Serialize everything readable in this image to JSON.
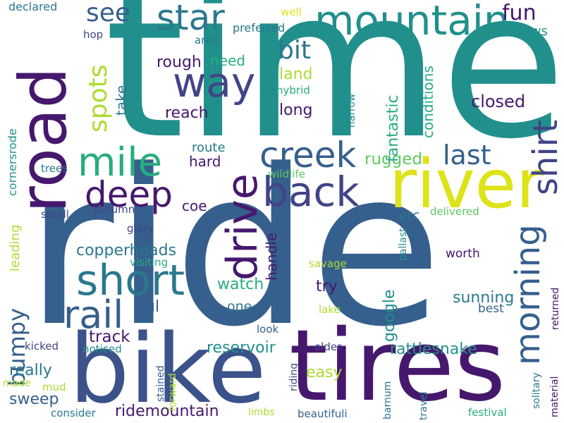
{
  "palette": {
    "dark_purple": "#46186d",
    "indigo": "#414487",
    "blue": "#355f8d",
    "teal": "#21908c",
    "sea_green": "#27ad81",
    "green": "#5ec962",
    "lime": "#addc30",
    "yellow": "#dde318"
  },
  "words": [
    {
      "text": "ride",
      "weight": 1.0,
      "color": "#355f8d"
    },
    {
      "text": "time",
      "weight": 0.95,
      "color": "#21908c"
    },
    {
      "text": "bike",
      "weight": 0.62,
      "color": "#3b528b"
    },
    {
      "text": "tires",
      "weight": 0.56,
      "color": "#46186d"
    },
    {
      "text": "road",
      "weight": 0.52,
      "color": "#46186d"
    },
    {
      "text": "river",
      "weight": 0.42,
      "color": "#dde318"
    },
    {
      "text": "mountain",
      "weight": 0.34,
      "color": "#21908c"
    },
    {
      "text": "drive",
      "weight": 0.33,
      "color": "#46186d"
    },
    {
      "text": "short",
      "weight": 0.32,
      "color": "#2a788e"
    },
    {
      "text": "back",
      "weight": 0.3,
      "color": "#414487"
    },
    {
      "text": "creek",
      "weight": 0.28,
      "color": "#355f8d"
    },
    {
      "text": "star",
      "weight": 0.28,
      "color": "#2a788e"
    },
    {
      "text": "way",
      "weight": 0.27,
      "color": "#414487"
    },
    {
      "text": "mile",
      "weight": 0.27,
      "color": "#27ad81"
    },
    {
      "text": "rail",
      "weight": 0.27,
      "color": "#355f8d"
    },
    {
      "text": "deep",
      "weight": 0.26,
      "color": "#46186d"
    },
    {
      "text": "morning",
      "weight": 0.24,
      "color": "#355f8d"
    },
    {
      "text": "shirt",
      "weight": 0.24,
      "color": "#414487"
    },
    {
      "text": "spots",
      "weight": 0.18,
      "color": "#addc30"
    },
    {
      "text": "last",
      "weight": 0.18,
      "color": "#355f8d"
    },
    {
      "text": "see",
      "weight": 0.17,
      "color": "#355f8d"
    },
    {
      "text": "bit",
      "weight": 0.17,
      "color": "#2a788e"
    },
    {
      "text": "bumpy",
      "weight": 0.16,
      "color": "#355f8d"
    },
    {
      "text": "fun",
      "weight": 0.14,
      "color": "#46186d"
    },
    {
      "text": "google",
      "weight": 0.13,
      "color": "#21908c"
    },
    {
      "text": "rugged",
      "weight": 0.12,
      "color": "#5ec962"
    },
    {
      "text": "fantastic",
      "weight": 0.12,
      "color": "#27ad81"
    },
    {
      "text": "closed",
      "weight": 0.12,
      "color": "#46186d"
    },
    {
      "text": "track",
      "weight": 0.12,
      "color": "#46186d"
    },
    {
      "text": "conditions",
      "weight": 0.12,
      "color": "#27ad81"
    },
    {
      "text": "copperheads",
      "weight": 0.12,
      "color": "#2a788e"
    },
    {
      "text": "ridemountain",
      "weight": 0.12,
      "color": "#46186d"
    },
    {
      "text": "rattlesnake",
      "weight": 0.12,
      "color": "#21908c"
    },
    {
      "text": "reservoir",
      "weight": 0.12,
      "color": "#21908c"
    },
    {
      "text": "sunning",
      "weight": 0.12,
      "color": "#2a788e"
    },
    {
      "text": "jul",
      "weight": 0.12,
      "color": "#355f8d"
    },
    {
      "text": "sweep",
      "weight": 0.11,
      "color": "#355f8d"
    },
    {
      "text": "really",
      "weight": 0.11,
      "color": "#2a788e"
    },
    {
      "text": "try",
      "weight": 0.11,
      "color": "#46186d"
    },
    {
      "text": "watch",
      "weight": 0.11,
      "color": "#27ad81"
    },
    {
      "text": "long",
      "weight": 0.11,
      "color": "#46186d"
    },
    {
      "text": "reach",
      "weight": 0.11,
      "color": "#46186d"
    },
    {
      "text": "rough",
      "weight": 0.11,
      "color": "#46186d"
    },
    {
      "text": "take",
      "weight": 0.11,
      "color": "#2a788e"
    },
    {
      "text": "land",
      "weight": 0.11,
      "color": "#addc30"
    },
    {
      "text": "easy",
      "weight": 0.11,
      "color": "#addc30"
    },
    {
      "text": "handle",
      "weight": 0.11,
      "color": "#46186d"
    },
    {
      "text": "hard",
      "weight": 0.11,
      "color": "#46186d"
    },
    {
      "text": "coe",
      "weight": 0.11,
      "color": "#46186d"
    },
    {
      "text": "one",
      "weight": 0.1,
      "color": "#2a788e"
    },
    {
      "text": "etc",
      "weight": 0.1,
      "color": "#2a788e"
    },
    {
      "text": "need",
      "weight": 0.1,
      "color": "#27ad81"
    },
    {
      "text": "route",
      "weight": 0.09,
      "color": "#2a788e"
    },
    {
      "text": "leading",
      "weight": 0.09,
      "color": "#addc30"
    },
    {
      "text": "cornersrode",
      "weight": 0.09,
      "color": "#21908c"
    },
    {
      "text": "views",
      "weight": 0.09,
      "color": "#21908c"
    },
    {
      "text": "best",
      "weight": 0.09,
      "color": "#355f8d"
    },
    {
      "text": "worth",
      "weight": 0.09,
      "color": "#46186d"
    },
    {
      "text": "declared",
      "weight": 0.08,
      "color": "#2a788e"
    },
    {
      "text": "preferred",
      "weight": 0.08,
      "color": "#2a788e"
    },
    {
      "text": "well",
      "weight": 0.07,
      "color": "#dde318"
    },
    {
      "text": "hop",
      "weight": 0.07,
      "color": "#414487"
    },
    {
      "text": "area",
      "weight": 0.07,
      "color": "#2a788e"
    },
    {
      "text": "hybrid",
      "weight": 0.07,
      "color": "#27ad81"
    },
    {
      "text": "narrow",
      "weight": 0.07,
      "color": "#21908c"
    },
    {
      "text": "trees",
      "weight": 0.07,
      "color": "#2a788e"
    },
    {
      "text": "wildlife",
      "weight": 0.07,
      "color": "#5ec962"
    },
    {
      "text": "autumn",
      "weight": 0.07,
      "color": "#414487"
    },
    {
      "text": "small",
      "weight": 0.07,
      "color": "#414487"
    },
    {
      "text": "glory",
      "weight": 0.07,
      "color": "#414487"
    },
    {
      "text": "delivered",
      "weight": 0.07,
      "color": "#5ec962"
    },
    {
      "text": "ballast",
      "weight": 0.07,
      "color": "#21908c"
    },
    {
      "text": "visiting",
      "weight": 0.07,
      "color": "#27ad81"
    },
    {
      "text": "savage",
      "weight": 0.07,
      "color": "#addc30"
    },
    {
      "text": "lake",
      "weight": 0.07,
      "color": "#addc30"
    },
    {
      "text": "returned",
      "weight": 0.07,
      "color": "#46186d"
    },
    {
      "text": "look",
      "weight": 0.07,
      "color": "#355f8d"
    },
    {
      "text": "kicked",
      "weight": 0.07,
      "color": "#414487"
    },
    {
      "text": "noticed",
      "weight": 0.07,
      "color": "#21908c"
    },
    {
      "text": "older",
      "weight": 0.07,
      "color": "#414487"
    },
    {
      "text": "made",
      "weight": 0.07,
      "color": "#addc30"
    },
    {
      "text": "mud",
      "weight": 0.07,
      "color": "#addc30"
    },
    {
      "text": "stained",
      "weight": 0.07,
      "color": "#355f8d"
    },
    {
      "text": "forward",
      "weight": 0.07,
      "color": "#addc30"
    },
    {
      "text": "riding",
      "weight": 0.07,
      "color": "#414487"
    },
    {
      "text": "barnum",
      "weight": 0.07,
      "color": "#2a788e"
    },
    {
      "text": "travel",
      "weight": 0.07,
      "color": "#2a788e"
    },
    {
      "text": "solitary",
      "weight": 0.07,
      "color": "#2a788e"
    },
    {
      "text": "material",
      "weight": 0.07,
      "color": "#46186d"
    },
    {
      "text": "consider",
      "weight": 0.07,
      "color": "#2a788e"
    },
    {
      "text": "limbs",
      "weight": 0.07,
      "color": "#addc30"
    },
    {
      "text": "beautifuli",
      "weight": 0.07,
      "color": "#355f8d"
    },
    {
      "text": "festival",
      "weight": 0.07,
      "color": "#27ad81"
    }
  ]
}
